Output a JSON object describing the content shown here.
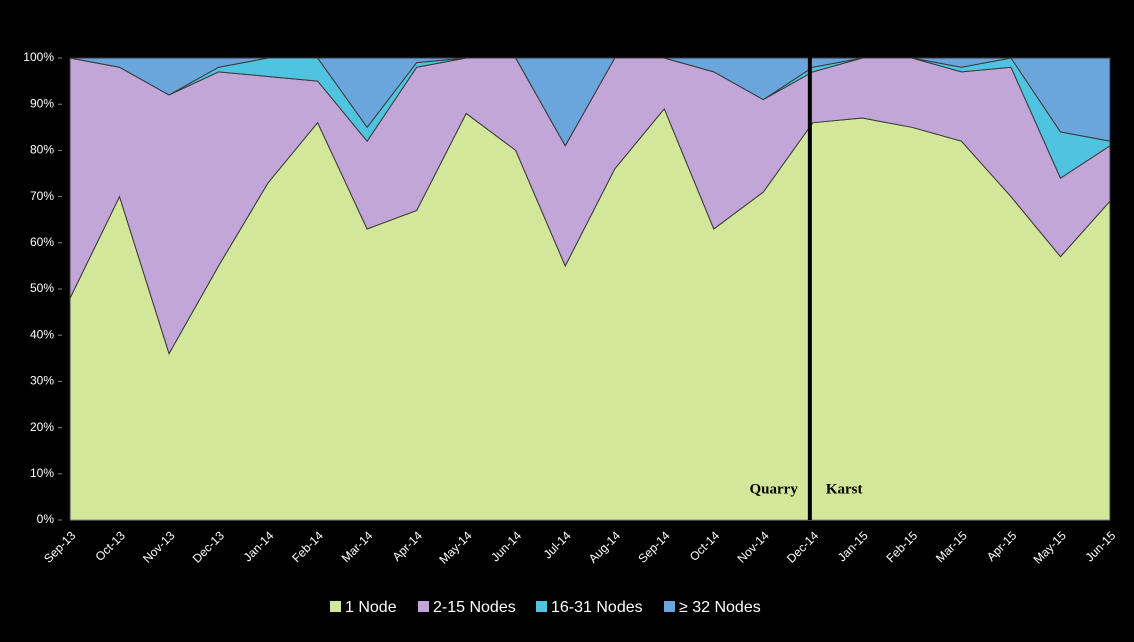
{
  "chart_data": {
    "type": "stacked_area_100",
    "categories": [
      "Sep-13",
      "Oct-13",
      "Nov-13",
      "Dec-13",
      "Jan-14",
      "Feb-14",
      "Mar-14",
      "Apr-14",
      "May-14",
      "Jun-14",
      "Jul-14",
      "Aug-14",
      "Sep-14",
      "Oct-14",
      "Nov-14",
      "Dec-14",
      "Jan-15",
      "Feb-15",
      "Mar-15",
      "Apr-15",
      "May-15",
      "Jun-15"
    ],
    "series": [
      {
        "name": "1 Node",
        "color": "#d3e79a",
        "values": [
          48,
          70,
          36,
          55,
          73,
          86,
          63,
          67,
          88,
          80,
          55,
          76,
          89,
          63,
          71,
          86,
          87,
          85,
          82,
          70,
          57,
          69
        ]
      },
      {
        "name": "2-15 Nodes",
        "color": "#c3a6d8",
        "values": [
          52,
          28,
          56,
          42,
          23,
          9,
          19,
          31,
          12,
          20,
          26,
          24,
          11,
          34,
          20,
          11,
          13,
          15,
          15,
          28,
          17,
          12
        ]
      },
      {
        "name": "16-31 Nodes",
        "color": "#4fc3df",
        "values": [
          0,
          0,
          0,
          1,
          4,
          5,
          3,
          1,
          0,
          0,
          0,
          0,
          0,
          0,
          0,
          1,
          0,
          0,
          1,
          2,
          10,
          1
        ]
      },
      {
        "name": "≥ 32 Nodes",
        "color": "#6aa6dc",
        "values": [
          0,
          2,
          8,
          2,
          0,
          0,
          15,
          1,
          0,
          0,
          19,
          0,
          0,
          3,
          9,
          2,
          0,
          0,
          2,
          0,
          16,
          18
        ]
      }
    ],
    "ylim": [
      0,
      100
    ],
    "yticks": [
      {
        "value": 0,
        "label": "0%"
      },
      {
        "value": 10,
        "label": "10%"
      },
      {
        "value": 20,
        "label": "20%"
      },
      {
        "value": 30,
        "label": "30%"
      },
      {
        "value": 40,
        "label": "40%"
      },
      {
        "value": 50,
        "label": "50%"
      },
      {
        "value": 60,
        "label": "60%"
      },
      {
        "value": 70,
        "label": "70%"
      },
      {
        "value": 80,
        "label": "80%"
      },
      {
        "value": 90,
        "label": "90%"
      },
      {
        "value": 100,
        "label": "100%"
      }
    ],
    "annotations": [
      "Quarry",
      "Karst"
    ],
    "legend": "bottom"
  }
}
